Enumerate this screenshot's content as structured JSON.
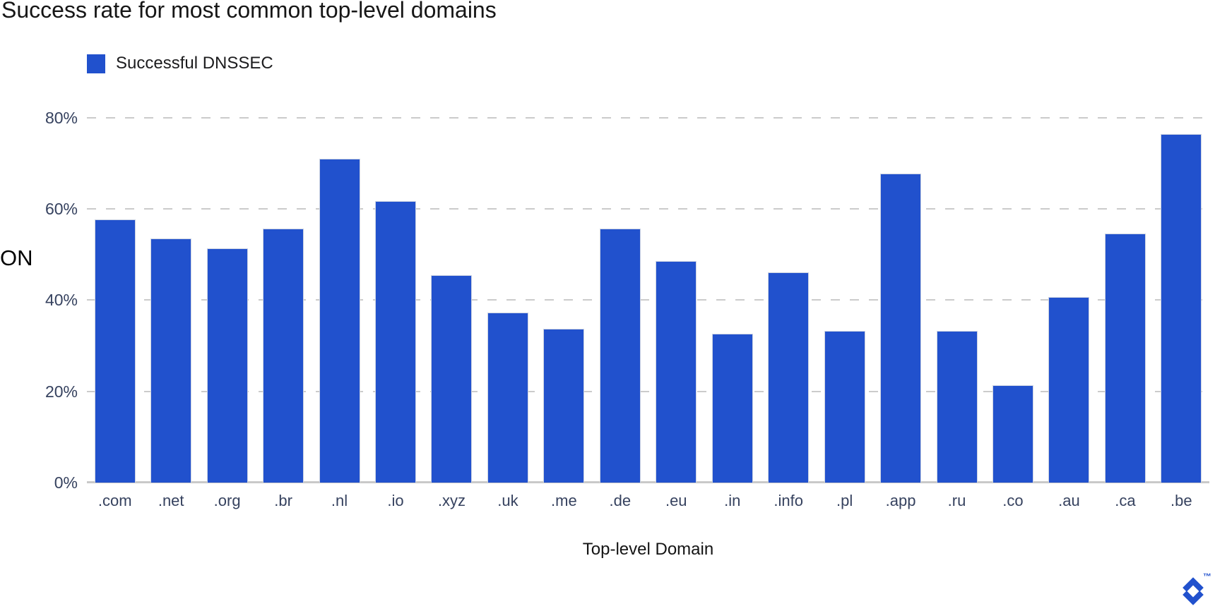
{
  "title": "Success rate for most common top-level domains",
  "legend": {
    "label": "Successful DNSSEC"
  },
  "y_axis": {
    "label_fragment": "ON",
    "ticks": [
      {
        "label": "0%",
        "value": 0
      },
      {
        "label": "20%",
        "value": 20
      },
      {
        "label": "40%",
        "value": 40
      },
      {
        "label": "60%",
        "value": 60
      },
      {
        "label": "80%",
        "value": 80
      }
    ]
  },
  "x_axis": {
    "title": "Top-level Domain"
  },
  "logo": {
    "trademark": "™",
    "name": "toptal-logo"
  },
  "colors": {
    "bar": "#2151cd",
    "grid": "#cbcbcb",
    "tick_text": "#36425f",
    "title_text": "#161616"
  },
  "chart_data": {
    "type": "bar",
    "title": "Success rate for most common top-level domains",
    "xlabel": "Top-level Domain",
    "ylabel": "",
    "ylim": [
      0,
      80
    ],
    "grid": "horizontal-dashed",
    "legend_position": "top-left",
    "categories": [
      ".com",
      ".net",
      ".org",
      ".br",
      ".nl",
      ".io",
      ".xyz",
      ".uk",
      ".me",
      ".de",
      ".eu",
      ".in",
      ".info",
      ".pl",
      ".app",
      ".ru",
      ".co",
      ".au",
      ".ca",
      ".be"
    ],
    "series": [
      {
        "name": "Successful DNSSEC",
        "values": [
          57.7,
          53.5,
          51.4,
          55.7,
          70.9,
          61.7,
          45.4,
          37.3,
          33.7,
          55.7,
          48.6,
          32.6,
          46.0,
          33.3,
          67.7,
          33.3,
          21.4,
          40.6,
          54.5,
          76.4
        ]
      }
    ]
  }
}
